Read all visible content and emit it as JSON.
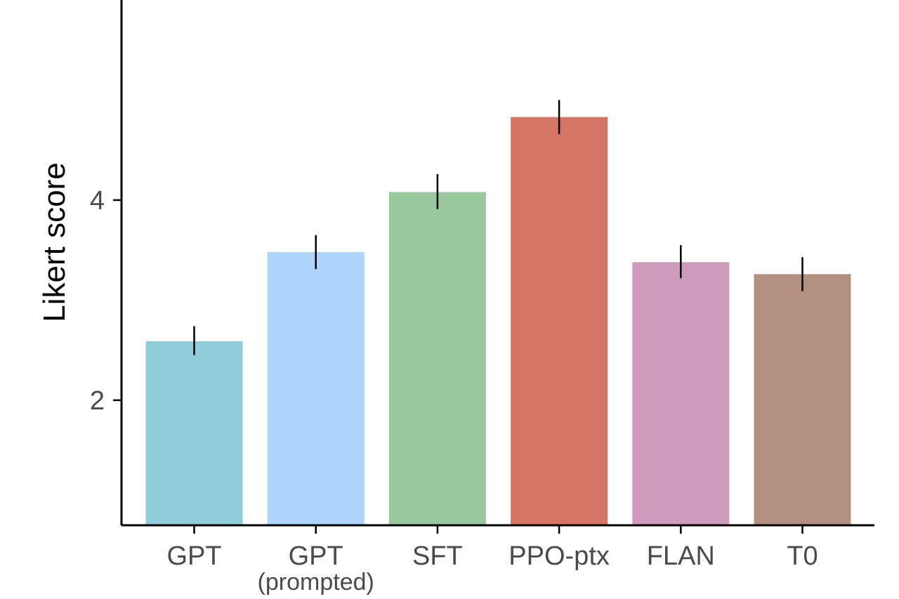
{
  "chart_data": {
    "type": "bar",
    "title": "",
    "xlabel": "",
    "ylabel": "Likert score",
    "categories": [
      {
        "label": "GPT",
        "sublabel": ""
      },
      {
        "label": "GPT",
        "sublabel": "(prompted)"
      },
      {
        "label": "SFT",
        "sublabel": ""
      },
      {
        "label": "PPO-ptx",
        "sublabel": ""
      },
      {
        "label": "FLAN",
        "sublabel": ""
      },
      {
        "label": "T0",
        "sublabel": ""
      }
    ],
    "values": [
      2.59,
      3.48,
      4.08,
      4.83,
      3.38,
      3.26
    ],
    "error_low": [
      2.45,
      3.31,
      3.91,
      4.66,
      3.22,
      3.09
    ],
    "error_high": [
      2.74,
      3.65,
      4.26,
      5.0,
      3.55,
      3.43
    ],
    "colors": [
      "#8ecdd9",
      "#acd4fc",
      "#9ac89e",
      "#d47563",
      "#cf9bbb",
      "#b1907f"
    ],
    "yticks": [
      2,
      4
    ],
    "ylim": [
      0.75,
      6.0
    ],
    "grid": false,
    "legend": "none"
  }
}
